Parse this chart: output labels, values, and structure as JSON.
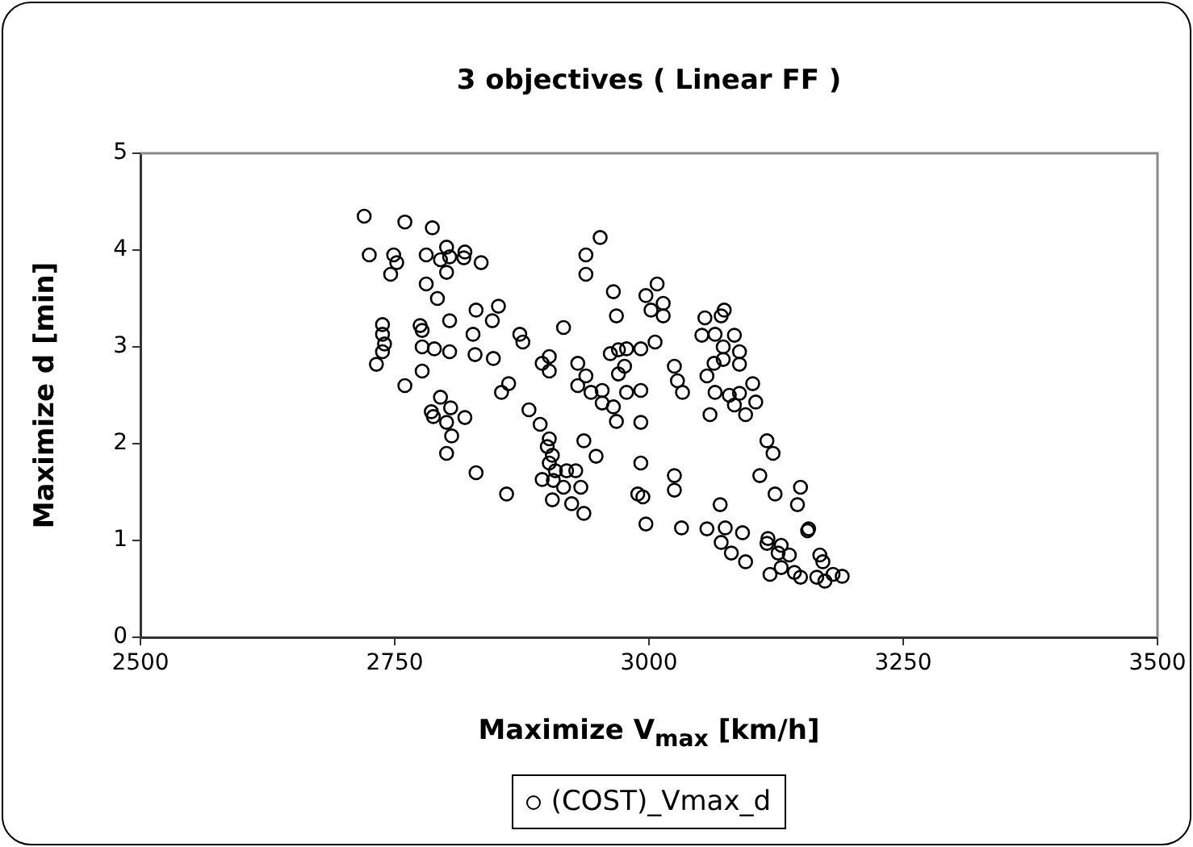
{
  "chart_data": {
    "type": "scatter",
    "title": "3 objectives ( Linear FF )",
    "xlabel": "Maximize V$_{max}$ [km/h]",
    "ylabel": "Maximize d [min]",
    "xlim": [
      2500,
      3500
    ],
    "xticks": [
      2500,
      2750,
      3000,
      3250,
      3500
    ],
    "ylim": [
      0,
      5
    ],
    "yticks": [
      0,
      1,
      2,
      3,
      4,
      5
    ],
    "grid": false,
    "legend": "bottom",
    "marker": "circle",
    "series": [
      {
        "name": "(COST)_Vmax_d",
        "color": "#000000",
        "x": [
          2720,
          2760,
          2787,
          2725,
          2749,
          2752,
          2746,
          2781,
          2801,
          2795,
          2804,
          2801,
          2819,
          2818,
          2835,
          2781,
          2792,
          2738,
          2738,
          2740,
          2738,
          2732,
          2760,
          2775,
          2777,
          2777,
          2789,
          2804,
          2777,
          2804,
          2830,
          2827,
          2829,
          2846,
          2852,
          2847,
          2873,
          2876,
          2916,
          2862,
          2855,
          2895,
          2902,
          2902,
          2882,
          2893,
          2902,
          2900,
          2905,
          2902,
          2908,
          2919,
          2928,
          2936,
          2948,
          2930,
          2938,
          2930,
          2943,
          2954,
          2954,
          2965,
          2968,
          2965,
          2968,
          2938,
          2938,
          2952,
          2962,
          2970,
          2978,
          2976,
          2970,
          2978,
          2992,
          2992,
          2992,
          2992,
          2989,
          2994,
          2997,
          2786,
          2788,
          2795,
          2805,
          2819,
          2801,
          2806,
          2801,
          2830,
          2860,
          2895,
          2906,
          2916,
          2933,
          2924,
          2905,
          2936,
          3008,
          2997,
          3014,
          3002,
          3014,
          3006,
          3032,
          3025,
          3028,
          3033,
          3025,
          3025,
          3074,
          3071,
          3055,
          3052,
          3065,
          3084,
          3073,
          3089,
          3089,
          3073,
          3064,
          3057,
          3065,
          3079,
          3084,
          3089,
          3102,
          3105,
          3095,
          3060,
          3116,
          3122,
          3109,
          3124,
          3149,
          3146,
          3070,
          3057,
          3075,
          3092,
          3071,
          3081,
          3095,
          3117,
          3116,
          3130,
          3127,
          3138,
          3119,
          3130,
          3143,
          3149,
          3156,
          3157,
          3168,
          3171,
          3165,
          3173,
          3181,
          3190
        ],
        "values": [
          4.35,
          4.29,
          4.23,
          3.95,
          3.95,
          3.87,
          3.75,
          3.95,
          4.03,
          3.9,
          3.93,
          3.77,
          3.98,
          3.92,
          3.87,
          3.65,
          3.5,
          3.23,
          3.13,
          3.03,
          2.95,
          2.82,
          2.6,
          3.22,
          3.17,
          3.0,
          2.98,
          2.95,
          2.75,
          3.27,
          3.38,
          3.13,
          2.92,
          3.27,
          3.42,
          2.88,
          3.13,
          3.05,
          3.2,
          2.62,
          2.53,
          2.83,
          2.9,
          2.75,
          2.35,
          2.2,
          2.05,
          1.97,
          1.88,
          1.8,
          1.72,
          1.72,
          1.72,
          2.03,
          1.87,
          2.83,
          2.7,
          2.6,
          2.53,
          2.55,
          2.42,
          2.38,
          2.23,
          3.57,
          3.32,
          3.95,
          3.75,
          4.13,
          2.93,
          2.97,
          2.98,
          2.8,
          2.72,
          2.53,
          2.98,
          2.55,
          2.22,
          1.8,
          1.48,
          1.45,
          1.17,
          2.33,
          2.28,
          2.48,
          2.37,
          2.27,
          2.22,
          2.08,
          1.9,
          1.7,
          1.48,
          1.63,
          1.62,
          1.55,
          1.55,
          1.38,
          1.42,
          1.28,
          3.65,
          3.53,
          3.45,
          3.38,
          3.32,
          3.05,
          1.13,
          2.8,
          2.65,
          2.53,
          1.67,
          1.52,
          3.38,
          3.32,
          3.3,
          3.12,
          3.13,
          3.12,
          3.0,
          2.95,
          2.82,
          2.87,
          2.83,
          2.7,
          2.53,
          2.5,
          2.4,
          2.52,
          2.62,
          2.43,
          2.3,
          2.3,
          2.03,
          1.9,
          1.67,
          1.48,
          1.55,
          1.37,
          1.37,
          1.12,
          1.13,
          1.08,
          0.98,
          0.87,
          0.78,
          1.02,
          0.97,
          0.95,
          0.87,
          0.85,
          0.65,
          0.72,
          0.67,
          0.62,
          1.1,
          1.12,
          0.85,
          0.78,
          0.62,
          0.58,
          0.65,
          0.63
        ]
      }
    ]
  }
}
